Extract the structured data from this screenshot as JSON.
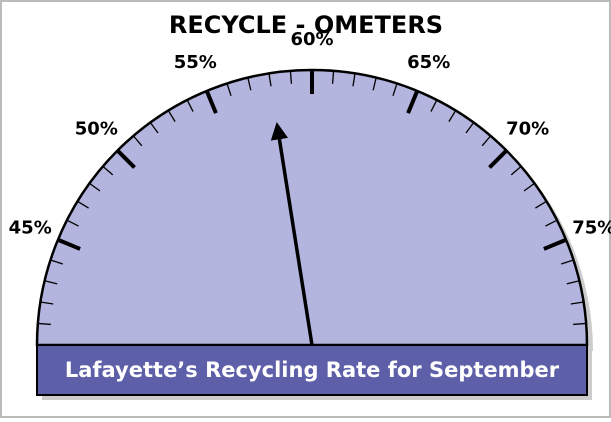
{
  "chart_data": {
    "type": "gauge",
    "title": "RECYCLE - OMETERS",
    "caption": "Lafayette’s Recycling Rate for September",
    "value": 58,
    "xlim": [
      40,
      80
    ],
    "xticks": [
      {
        "value": 45,
        "label": "45%"
      },
      {
        "value": 50,
        "label": "50%"
      },
      {
        "value": 55,
        "label": "55%"
      },
      {
        "value": 60,
        "label": "60%"
      },
      {
        "value": 65,
        "label": "65%"
      },
      {
        "value": 70,
        "label": "70%"
      },
      {
        "value": 75,
        "label": "75%"
      }
    ],
    "minor_ticks": [
      40,
      41,
      42,
      43,
      44,
      46,
      47,
      48,
      49,
      51,
      52,
      53,
      54,
      56,
      57,
      58,
      59,
      61,
      62,
      63,
      64,
      66,
      67,
      68,
      69,
      71,
      72,
      73,
      74,
      76,
      77,
      78,
      79,
      80
    ],
    "color": "#b3b5de",
    "caption_color": "#5d5fa8"
  }
}
